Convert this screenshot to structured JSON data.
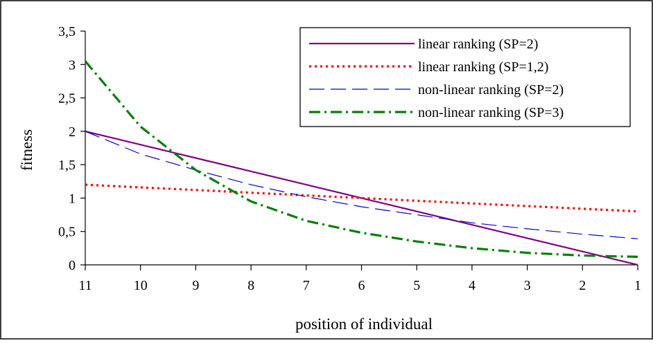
{
  "chart_data": {
    "type": "line",
    "title": "",
    "xlabel": "position of individual",
    "ylabel": "fitness",
    "x": [
      "11",
      "10",
      "9",
      "8",
      "7",
      "6",
      "5",
      "4",
      "3",
      "2",
      "1"
    ],
    "ylim": [
      0,
      3.5
    ],
    "yticks": [
      {
        "value": 0,
        "label": "0"
      },
      {
        "value": 0.5,
        "label": "0,5"
      },
      {
        "value": 1,
        "label": "1"
      },
      {
        "value": 1.5,
        "label": "1,5"
      },
      {
        "value": 2,
        "label": "2"
      },
      {
        "value": 2.5,
        "label": "2,5"
      },
      {
        "value": 3,
        "label": "3"
      },
      {
        "value": 3.5,
        "label": "3,5"
      }
    ],
    "grid": false,
    "legend_position": "top-right",
    "series": [
      {
        "name": "linear ranking (SP=2)",
        "color": "#800080",
        "style": "solid",
        "values": [
          2.0,
          1.8,
          1.6,
          1.4,
          1.2,
          1.0,
          0.8,
          0.6,
          0.4,
          0.2,
          0.0
        ]
      },
      {
        "name": "linear ranking (SP=1,2)",
        "color": "#ff0000",
        "style": "dotted",
        "values": [
          1.2,
          1.16,
          1.12,
          1.08,
          1.04,
          1.0,
          0.96,
          0.92,
          0.88,
          0.84,
          0.8
        ]
      },
      {
        "name": "non-linear ranking (SP=2)",
        "color": "#0000cc",
        "style": "long-dash",
        "values": [
          2.0,
          1.66,
          1.42,
          1.2,
          1.02,
          0.87,
          0.75,
          0.63,
          0.54,
          0.46,
          0.39
        ]
      },
      {
        "name": "non-linear ranking (SP=3)",
        "color": "#008000",
        "style": "dash-dot",
        "values": [
          3.05,
          2.07,
          1.42,
          0.95,
          0.66,
          0.48,
          0.35,
          0.25,
          0.18,
          0.14,
          0.12
        ]
      }
    ]
  }
}
